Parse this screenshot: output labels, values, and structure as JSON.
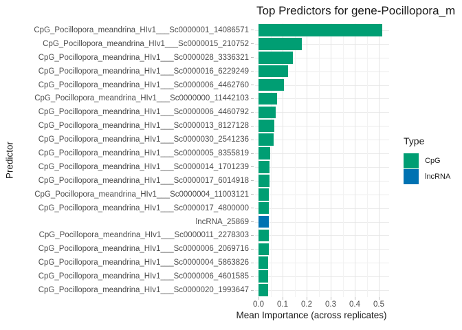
{
  "title": "Top Predictors for gene-Pocillopora_m",
  "axes": {
    "x": {
      "title": "Mean Importance (across replicates)",
      "ticks": [
        {
          "label": "0.0",
          "value": 0.0
        },
        {
          "label": "0.1",
          "value": 0.1
        },
        {
          "label": "0.2",
          "value": 0.2
        },
        {
          "label": "0.3",
          "value": 0.3
        },
        {
          "label": "0.4",
          "value": 0.4
        },
        {
          "label": "0.5",
          "value": 0.5
        }
      ]
    },
    "y": {
      "title": "Predictor"
    }
  },
  "legend": {
    "title": "Type",
    "items": [
      {
        "label": "CpG",
        "color": "#009E73"
      },
      {
        "label": "lncRNA",
        "color": "#0072B2"
      }
    ]
  },
  "chart_data": {
    "type": "bar",
    "orientation": "horizontal",
    "title": "Top Predictors for gene-Pocillopora_m",
    "xlabel": "Mean Importance (across replicates)",
    "ylabel": "Predictor",
    "xlim": [
      0,
      0.55
    ],
    "grid": true,
    "legend_position": "right",
    "categories": [
      "CpG_Pocillopora_meandrina_HIv1___Sc0000001_14086571",
      "CpG_Pocillopora_meandrina_HIv1___Sc0000015_210752",
      "CpG_Pocillopora_meandrina_HIv1___Sc0000028_3336321",
      "CpG_Pocillopora_meandrina_HIv1___Sc0000016_6229249",
      "CpG_Pocillopora_meandrina_HIv1___Sc0000006_4462760",
      "CpG_Pocillopora_meandrina_HIv1___Sc0000000_11442103",
      "CpG_Pocillopora_meandrina_HIv1___Sc0000006_4460792",
      "CpG_Pocillopora_meandrina_HIv1___Sc0000013_8127128",
      "CpG_Pocillopora_meandrina_HIv1___Sc0000030_2541236",
      "CpG_Pocillopora_meandrina_HIv1___Sc0000005_8355819",
      "CpG_Pocillopora_meandrina_HIv1___Sc0000014_1701239",
      "CpG_Pocillopora_meandrina_HIv1___Sc0000017_6014918",
      "CpG_Pocillopora_meandrina_HIv1___Sc0000004_11003121",
      "CpG_Pocillopora_meandrina_HIv1___Sc0000017_4800000",
      "lncRNA_25869",
      "CpG_Pocillopora_meandrina_HIv1___Sc0000011_2278303",
      "CpG_Pocillopora_meandrina_HIv1___Sc0000006_2069716",
      "CpG_Pocillopora_meandrina_HIv1___Sc0000004_5863826",
      "CpG_Pocillopora_meandrina_HIv1___Sc0000006_4601585",
      "CpG_Pocillopora_meandrina_HIv1___Sc0000020_1993647"
    ],
    "values": [
      0.514,
      0.18,
      0.143,
      0.123,
      0.106,
      0.077,
      0.07,
      0.067,
      0.063,
      0.048,
      0.046,
      0.045,
      0.044,
      0.044,
      0.043,
      0.042,
      0.042,
      0.041,
      0.04,
      0.04
    ],
    "types": [
      "CpG",
      "CpG",
      "CpG",
      "CpG",
      "CpG",
      "CpG",
      "CpG",
      "CpG",
      "CpG",
      "CpG",
      "CpG",
      "CpG",
      "CpG",
      "CpG",
      "lncRNA",
      "CpG",
      "CpG",
      "CpG",
      "CpG",
      "CpG"
    ]
  }
}
